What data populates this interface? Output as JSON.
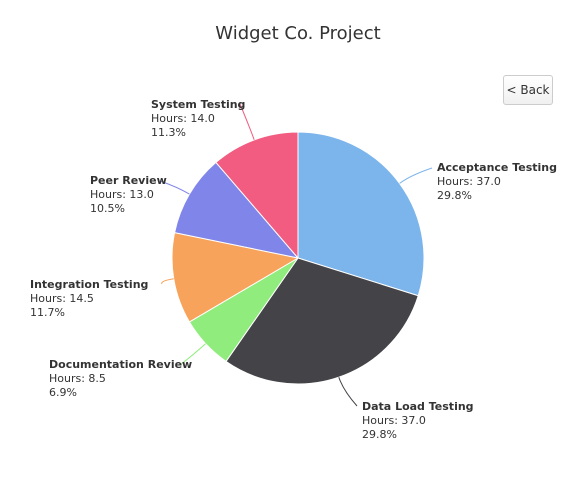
{
  "back_button": {
    "label": "< Back"
  },
  "chart_data": {
    "type": "pie",
    "title": "Widget Co. Project",
    "value_label": "Hours:",
    "slices": [
      {
        "name": "Acceptance Testing",
        "value": 37.0,
        "value_text": "37.0",
        "percent": "29.8%",
        "color": "#7cb5ec"
      },
      {
        "name": "Data Load Testing",
        "value": 37.0,
        "value_text": "37.0",
        "percent": "29.8%",
        "color": "#434348"
      },
      {
        "name": "Documentation Review",
        "value": 8.5,
        "value_text": "8.5",
        "percent": "6.9%",
        "color": "#90ed7d"
      },
      {
        "name": "Integration Testing",
        "value": 14.5,
        "value_text": "14.5",
        "percent": "11.7%",
        "color": "#f7a35c"
      },
      {
        "name": "Peer Review",
        "value": 13.0,
        "value_text": "13.0",
        "percent": "10.5%",
        "color": "#8085e9"
      },
      {
        "name": "System Testing",
        "value": 14.0,
        "value_text": "14.0",
        "percent": "11.3%",
        "color": "#f15c80"
      }
    ]
  }
}
